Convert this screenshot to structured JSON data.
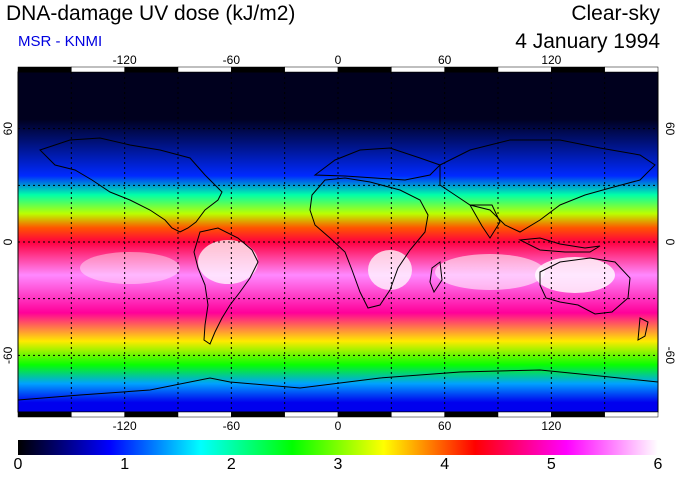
{
  "header": {
    "title": "DNA-damage UV dose (kJ/m2)",
    "credit": "MSR - KNMI",
    "sky_condition": "Clear-sky",
    "date": "4 January 1994"
  },
  "map": {
    "projection": "equirectangular",
    "lon_range": [
      -180,
      180
    ],
    "lat_range": [
      -90,
      90
    ],
    "lon_ticks": [
      "-120",
      "-60",
      "0",
      "60",
      "120"
    ],
    "lat_ticks": [
      "60",
      "0",
      "-60"
    ],
    "gridline_lons": [
      -150,
      -120,
      -90,
      -60,
      -30,
      0,
      30,
      60,
      90,
      120,
      150
    ],
    "gridline_lats": [
      -60,
      -30,
      0,
      30,
      60
    ],
    "field_bands": [
      {
        "lat_from": 90,
        "lat_to": 40,
        "dose": 0.1
      },
      {
        "lat_from": 40,
        "lat_to": 30,
        "dose": 1.0
      },
      {
        "lat_from": 30,
        "lat_to": 20,
        "dose": 2.0
      },
      {
        "lat_from": 20,
        "lat_to": 10,
        "dose": 3.2
      },
      {
        "lat_from": 10,
        "lat_to": 5,
        "dose": 4.0
      },
      {
        "lat_from": 5,
        "lat_to": -5,
        "dose": 4.5
      },
      {
        "lat_from": -5,
        "lat_to": -30,
        "dose": 5.6
      },
      {
        "lat_from": -30,
        "lat_to": -45,
        "dose": 4.8
      },
      {
        "lat_from": -45,
        "lat_to": -60,
        "dose": 3.5
      },
      {
        "lat_from": -60,
        "lat_to": -70,
        "dose": 2.6
      },
      {
        "lat_from": -70,
        "lat_to": -80,
        "dose": 1.4
      },
      {
        "lat_from": -80,
        "lat_to": -90,
        "dose": 0.8
      }
    ]
  },
  "colorbar": {
    "ticks": [
      "0",
      "1",
      "2",
      "3",
      "4",
      "5",
      "6"
    ],
    "range": [
      0,
      6
    ],
    "stops": [
      "#000000",
      "#0000ff",
      "#00ffff",
      "#00ff00",
      "#ffff00",
      "#ff0000",
      "#ff00ff",
      "#ffffff"
    ]
  },
  "colors": {
    "credit": "#0000e0",
    "coastline": "#000000",
    "grid": "#000000"
  }
}
